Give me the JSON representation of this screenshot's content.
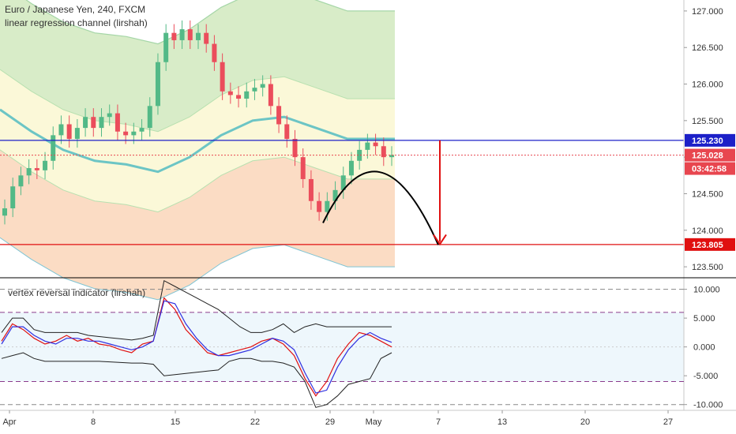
{
  "header": {
    "symbol_line": "Euro / Japanese Yen, 240, FXCM",
    "indicator_line": "linear regression channel (lirshah)",
    "sub_indicator": "vertex reversal indicator (lirshah)"
  },
  "price_tags": {
    "top_line": "125.230",
    "last_price": "125.028",
    "countdown": "03:42:58",
    "target": "123.805"
  },
  "colors": {
    "up_candle": "#53b987",
    "down_candle": "#eb4d5c",
    "blue_line": "#1c20c8",
    "red_line": "#e01010",
    "last_price_tag": "#e8464f",
    "channel_upper": "#d8ecc8",
    "channel_mid": "#fbf8d8",
    "channel_lower": "#fbdcc4",
    "regression": "#6cc5c5"
  },
  "chart_data": [
    {
      "type": "candlestick",
      "title": "Euro / Japanese Yen, 240, FXCM",
      "y_axis": {
        "ticks": [
          123.5,
          124.0,
          124.5,
          125.0,
          125.5,
          126.0,
          126.5,
          127.0
        ],
        "tick_labels": [
          "123.500",
          "124.000",
          "124.500",
          "125.000",
          "125.500",
          "126.000",
          "126.500",
          "127.000"
        ],
        "range": [
          123.35,
          127.15
        ]
      },
      "x_axis": {
        "labels": [
          "Apr",
          "8",
          "15",
          "22",
          "29",
          "May",
          "7",
          "13",
          "20",
          "27"
        ]
      },
      "price_path_close": [
        124.3,
        124.6,
        124.75,
        124.85,
        124.82,
        124.95,
        125.3,
        125.45,
        125.25,
        125.4,
        125.55,
        125.4,
        125.55,
        125.6,
        125.35,
        125.3,
        125.35,
        125.4,
        125.7,
        126.3,
        126.7,
        126.6,
        126.75,
        126.6,
        126.7,
        126.55,
        126.3,
        125.9,
        125.85,
        125.8,
        125.9,
        125.95,
        126.0,
        125.7,
        125.45,
        125.25,
        125.0,
        124.7,
        124.4,
        124.25,
        124.4,
        124.55,
        124.75,
        124.95,
        125.1,
        125.2,
        125.15,
        125.0,
        125.03
      ],
      "horizontal_lines": [
        {
          "price": 125.23,
          "label": "125.230",
          "color": "#1c20c8"
        },
        {
          "price": 123.805,
          "label": "123.805",
          "color": "#e01010"
        },
        {
          "price": 125.028,
          "label": "125.028",
          "style": "dotted",
          "color": "#e8464f"
        }
      ],
      "annotations": {
        "arc": {
          "start_price": 124.1,
          "peak_price": 125.21,
          "end_price": 123.8
        },
        "arrow": {
          "from_price": 125.23,
          "to_price": 123.81
        }
      }
    },
    {
      "type": "line",
      "title": "vertex reversal indicator (lirshah)",
      "y_axis": {
        "ticks": [
          10,
          5,
          0,
          -5,
          -10
        ],
        "tick_labels": [
          "10.000",
          "5.000",
          "0.000",
          "-5.000",
          "-10.000"
        ],
        "range": [
          -11,
          12
        ]
      },
      "levels": [
        10,
        6,
        -6,
        -10
      ],
      "series": [
        {
          "values": [
            1.0,
            4.0,
            3.0,
            1.5,
            0.5,
            1.0,
            2.0,
            1.0,
            1.5,
            0.5,
            0.2,
            -0.5,
            -1.0,
            0.5,
            1.0,
            8.5,
            6.5,
            3.0,
            1.0,
            -1.0,
            -1.5,
            -1.0,
            -0.5,
            0.0,
            1.0,
            1.5,
            0.5,
            -1.5,
            -5.5,
            -8.5,
            -6.0,
            -2.0,
            0.5,
            2.5,
            2.0,
            1.0,
            0.0
          ],
          "color": "#e01010"
        },
        {
          "values": [
            0.5,
            3.5,
            3.5,
            2.0,
            1.0,
            0.5,
            1.5,
            1.5,
            1.0,
            1.0,
            0.5,
            0.0,
            -0.5,
            0.0,
            1.0,
            8.0,
            7.5,
            4.0,
            1.5,
            -0.5,
            -1.5,
            -1.5,
            -1.0,
            -0.5,
            0.5,
            1.5,
            1.0,
            -0.5,
            -4.5,
            -8.0,
            -7.5,
            -3.5,
            -0.5,
            1.5,
            2.5,
            1.5,
            0.8
          ],
          "color": "#3030e0"
        },
        {
          "values": [
            2.5,
            5.0,
            5.0,
            3.0,
            2.5,
            2.5,
            2.5,
            2.5,
            2.0,
            1.8,
            1.6,
            1.4,
            1.2,
            1.5,
            2.0,
            11.5,
            10.5,
            9.5,
            8.5,
            7.5,
            6.5,
            5.0,
            3.5,
            2.5,
            2.5,
            3.0,
            4.0,
            2.5,
            3.5,
            4.0,
            3.5,
            3.5,
            3.5,
            3.5,
            3.5,
            3.5,
            3.5
          ],
          "color": "#222222"
        },
        {
          "values": [
            -2.0,
            -1.5,
            -1.0,
            -2.0,
            -2.5,
            -2.5,
            -2.5,
            -2.5,
            -2.5,
            -2.5,
            -2.6,
            -2.7,
            -2.8,
            -2.8,
            -3.0,
            -5.0,
            -4.8,
            -4.6,
            -4.4,
            -4.2,
            -4.0,
            -2.5,
            -2.0,
            -2.0,
            -2.5,
            -2.5,
            -2.8,
            -3.5,
            -6.0,
            -10.5,
            -10.0,
            -8.5,
            -6.5,
            -6.0,
            -5.5,
            -2.0,
            -1.0
          ],
          "color": "#222222"
        }
      ]
    }
  ]
}
